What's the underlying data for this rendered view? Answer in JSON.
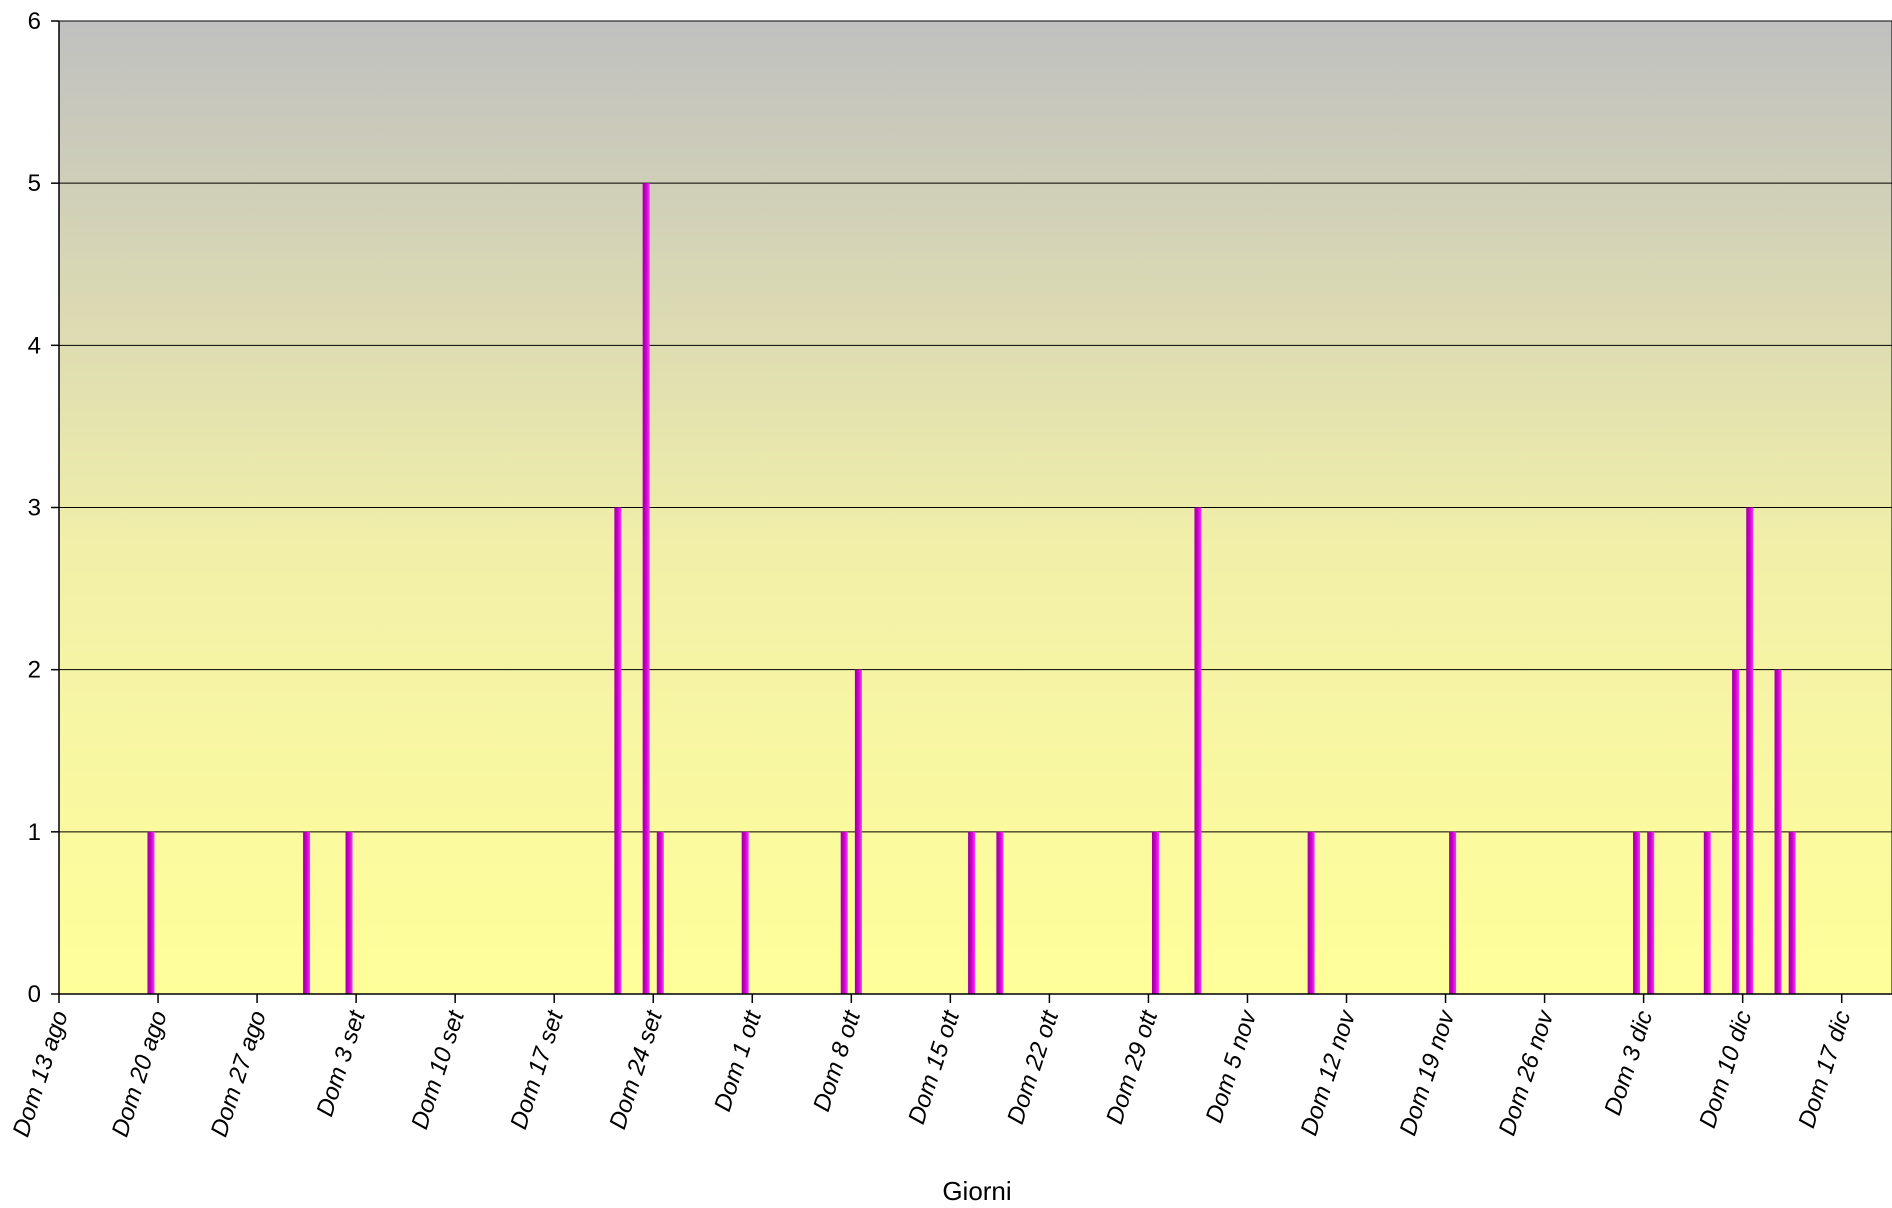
{
  "chart_data": {
    "type": "bar",
    "xlabel": "Giorni",
    "ylabel": "",
    "ylim": [
      0,
      6
    ],
    "yticks": [
      "0",
      "1",
      "2",
      "3",
      "4",
      "5",
      "6"
    ],
    "grid": true,
    "x_range_days": [
      0,
      128
    ],
    "x_ticks": [
      {
        "day": 0,
        "label": "Dom 13 ago"
      },
      {
        "day": 7,
        "label": "Dom 20 ago"
      },
      {
        "day": 14,
        "label": "Dom 27 ago"
      },
      {
        "day": 21,
        "label": "Dom 3 set"
      },
      {
        "day": 28,
        "label": "Dom 10 set"
      },
      {
        "day": 35,
        "label": "Dom 17 set"
      },
      {
        "day": 42,
        "label": "Dom 24 set"
      },
      {
        "day": 49,
        "label": "Dom 1 ott"
      },
      {
        "day": 56,
        "label": "Dom 8 ott"
      },
      {
        "day": 63,
        "label": "Dom 15 ott"
      },
      {
        "day": 70,
        "label": "Dom 22 ott"
      },
      {
        "day": 77,
        "label": "Dom 29 ott"
      },
      {
        "day": 84,
        "label": "Dom 5 nov"
      },
      {
        "day": 91,
        "label": "Dom 12 nov"
      },
      {
        "day": 98,
        "label": "Dom 19 nov"
      },
      {
        "day": 105,
        "label": "Dom 26 nov"
      },
      {
        "day": 112,
        "label": "Dom 3 dic"
      },
      {
        "day": 119,
        "label": "Dom 10 dic"
      },
      {
        "day": 126,
        "label": "Dom 17 dic"
      }
    ],
    "bars": [
      {
        "day": 6.5,
        "value": 1
      },
      {
        "day": 17.5,
        "value": 1
      },
      {
        "day": 20.5,
        "value": 1
      },
      {
        "day": 39.5,
        "value": 3
      },
      {
        "day": 41.5,
        "value": 5
      },
      {
        "day": 42.5,
        "value": 1
      },
      {
        "day": 48.5,
        "value": 1
      },
      {
        "day": 55.5,
        "value": 1
      },
      {
        "day": 56.5,
        "value": 2
      },
      {
        "day": 64.5,
        "value": 1
      },
      {
        "day": 66.5,
        "value": 1
      },
      {
        "day": 77.5,
        "value": 1
      },
      {
        "day": 80.5,
        "value": 3
      },
      {
        "day": 88.5,
        "value": 1
      },
      {
        "day": 98.5,
        "value": 1
      },
      {
        "day": 111.5,
        "value": 1
      },
      {
        "day": 112.5,
        "value": 1
      },
      {
        "day": 116.5,
        "value": 1
      },
      {
        "day": 118.5,
        "value": 2
      },
      {
        "day": 119.5,
        "value": 3
      },
      {
        "day": 121.5,
        "value": 2
      },
      {
        "day": 122.5,
        "value": 1
      }
    ],
    "colors": {
      "bar_light": "#ff33ff",
      "bar_dark": "#990099",
      "bg_top": "#c0c0c0",
      "bg_bottom": "#ffff99",
      "grid": "#000000"
    }
  }
}
